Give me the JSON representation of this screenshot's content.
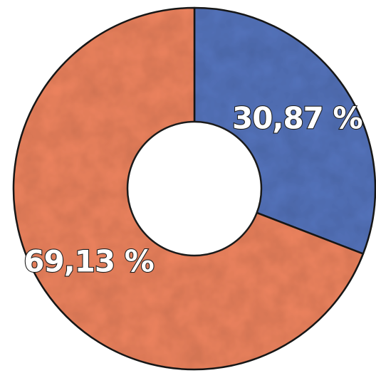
{
  "chart_data": {
    "type": "pie",
    "variant": "donut",
    "categories": [
      "",
      ""
    ],
    "values": [
      30.87,
      69.13
    ],
    "labels": [
      "30,87 %",
      "69,13 %"
    ],
    "colors": [
      "#5574bd",
      "#ef845f"
    ],
    "title": "",
    "legend": "none",
    "start_angle_deg": 0,
    "direction": "clockwise"
  }
}
